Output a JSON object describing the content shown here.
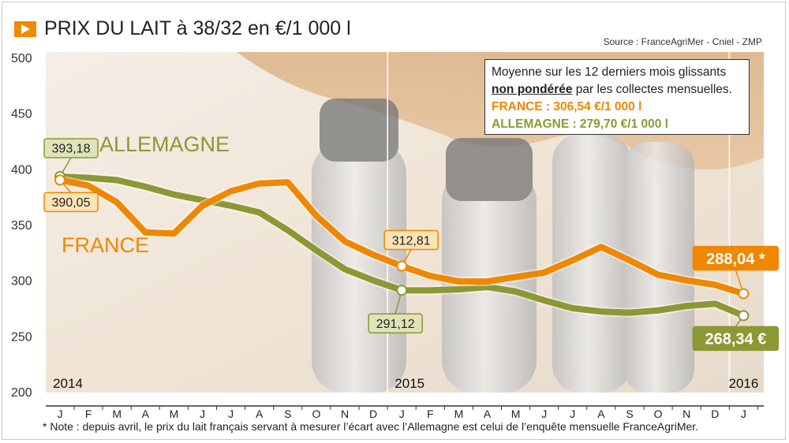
{
  "title": "PRIX DU LAIT à 38/32 en €/1 000 l",
  "source": "Source : FranceAgriMer - Cniel - ZMP",
  "footnote": "* Note : depuis avril, le prix du lait français servant à mesurer l’écart avec l’Allemagne est celui de l’enquête mensuelle FranceAgriMer.",
  "legend_box": {
    "line1": "Moyenne sur les 12 derniers mois glissants",
    "line2_bold": "non pondérée",
    "line2_rest": " par les collectes mensuelles.",
    "france_label": "FRANCE : 306,54 €/1 000 l",
    "allemagne_label": "ALLEMAGNE : 279,70 €/1 000 l"
  },
  "colors": {
    "france": "#ef8700",
    "allemagne": "#8c9834",
    "france_label_text": "#ef8700",
    "allemagne_label_text": "#8c9834",
    "axis": "#333333"
  },
  "chart_data": {
    "type": "line",
    "title": "PRIX DU LAIT à 38/32 en €/1 000 l",
    "ylim": [
      200,
      500
    ],
    "yticks": [
      "500",
      "450",
      "400",
      "350",
      "300",
      "250",
      "200"
    ],
    "x": [
      "J",
      "F",
      "M",
      "A",
      "M",
      "J",
      "J",
      "A",
      "S",
      "O",
      "N",
      "D",
      "J",
      "F",
      "M",
      "A",
      "M",
      "J",
      "J",
      "A",
      "S",
      "O",
      "N",
      "D",
      "J"
    ],
    "year_labels": [
      {
        "index": 0,
        "label": "2014"
      },
      {
        "index": 12,
        "label": "2015"
      },
      {
        "index": 24,
        "label": "2016"
      }
    ],
    "series": [
      {
        "name": "FRANCE",
        "values": [
          390.05,
          385,
          370,
          343,
          342,
          367,
          380,
          387,
          388,
          358,
          335,
          323,
          312.81,
          304,
          299,
          299,
          303,
          307,
          318,
          330,
          318,
          305,
          300,
          296,
          288.04
        ]
      },
      {
        "name": "ALLEMAGNE",
        "values": [
          393.18,
          392,
          390,
          384,
          377,
          372,
          367,
          361,
          345,
          327,
          310,
          300,
          291.12,
          291,
          292,
          294,
          290,
          282,
          275,
          272,
          271,
          273,
          277,
          279,
          268.34
        ]
      }
    ],
    "annotations": [
      {
        "series": "ALLEMAGNE",
        "index": 0,
        "text": "393,18"
      },
      {
        "series": "FRANCE",
        "index": 0,
        "text": "390,05"
      },
      {
        "series": "FRANCE",
        "index": 12,
        "text": "312,81"
      },
      {
        "series": "ALLEMAGNE",
        "index": 12,
        "text": "291,12"
      },
      {
        "series": "FRANCE",
        "index": 24,
        "text": "288,04 *"
      },
      {
        "series": "ALLEMAGNE",
        "index": 24,
        "text": "268,34 €"
      }
    ]
  }
}
